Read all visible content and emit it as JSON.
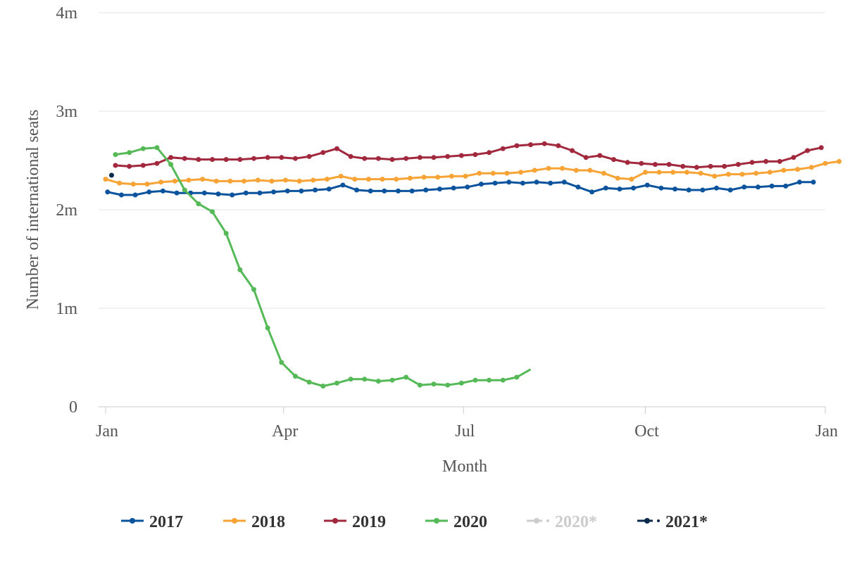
{
  "chart_data": {
    "type": "line",
    "title": "",
    "xlabel": "Month",
    "ylabel": "Number of international seats",
    "xlim": [
      0,
      52
    ],
    "ylim": [
      0,
      4000000
    ],
    "x_ticks": [
      {
        "label": "Jan",
        "x": 0
      },
      {
        "label": "Apr",
        "x": 12.86
      },
      {
        "label": "Jul",
        "x": 25.86
      },
      {
        "label": "Oct",
        "x": 39
      },
      {
        "label": "Jan",
        "x": 52
      }
    ],
    "y_ticks": [
      {
        "label": "0",
        "value": 0
      },
      {
        "label": "1m",
        "value": 1000000
      },
      {
        "label": "2m",
        "value": 2000000
      },
      {
        "label": "3m",
        "value": 3000000
      },
      {
        "label": "4m",
        "value": 4000000
      }
    ],
    "grid": true,
    "legend": "bottom",
    "series": [
      {
        "name": "2017",
        "color": "#0b539d",
        "x_start": 0.14,
        "x_step": 1,
        "values": [
          2.18,
          2.15,
          2.15,
          2.18,
          2.19,
          2.17,
          2.17,
          2.17,
          2.16,
          2.15,
          2.17,
          2.17,
          2.18,
          2.19,
          2.19,
          2.2,
          2.21,
          2.25,
          2.2,
          2.19,
          2.19,
          2.19,
          2.19,
          2.2,
          2.21,
          2.22,
          2.23,
          2.26,
          2.27,
          2.28,
          2.27,
          2.28,
          2.27,
          2.28,
          2.23,
          2.18,
          2.22,
          2.21,
          2.22,
          2.25,
          2.22,
          2.21,
          2.2,
          2.2,
          2.22,
          2.2,
          2.23,
          2.23,
          2.24,
          2.24,
          2.28,
          2.28
        ]
      },
      {
        "name": "2018",
        "color": "#f7a335",
        "x_start": 0,
        "x_step": 1,
        "values": [
          2.31,
          2.27,
          2.26,
          2.26,
          2.28,
          2.29,
          2.3,
          2.31,
          2.29,
          2.29,
          2.29,
          2.3,
          2.29,
          2.3,
          2.29,
          2.3,
          2.31,
          2.34,
          2.31,
          2.31,
          2.31,
          2.31,
          2.32,
          2.33,
          2.33,
          2.34,
          2.34,
          2.37,
          2.37,
          2.37,
          2.38,
          2.4,
          2.42,
          2.42,
          2.4,
          2.4,
          2.37,
          2.32,
          2.31,
          2.38,
          2.38,
          2.38,
          2.38,
          2.37,
          2.34,
          2.36,
          2.36,
          2.37,
          2.38,
          2.4,
          2.41,
          2.43,
          2.47,
          2.49
        ]
      },
      {
        "name": "2019",
        "color": "#a1283d",
        "x_start": 0.71,
        "x_step": 1,
        "values": [
          2.45,
          2.44,
          2.45,
          2.47,
          2.53,
          2.52,
          2.51,
          2.51,
          2.51,
          2.51,
          2.52,
          2.53,
          2.53,
          2.52,
          2.54,
          2.58,
          2.62,
          2.54,
          2.52,
          2.52,
          2.51,
          2.52,
          2.53,
          2.53,
          2.54,
          2.55,
          2.56,
          2.58,
          2.62,
          2.65,
          2.66,
          2.67,
          2.65,
          2.6,
          2.53,
          2.55,
          2.51,
          2.48,
          2.47,
          2.46,
          2.46,
          2.44,
          2.43,
          2.44,
          2.44,
          2.46,
          2.48,
          2.49,
          2.49,
          2.53,
          2.6,
          2.63
        ]
      },
      {
        "name": "2020",
        "color": "#54b956",
        "x_start": 0.71,
        "x_step": 1,
        "values": [
          2.56,
          2.58,
          2.62,
          2.63,
          2.46,
          2.2,
          2.06,
          1.98,
          1.76,
          1.39,
          1.19,
          0.8,
          0.45,
          0.31,
          0.25,
          0.21,
          0.24,
          0.28,
          0.28,
          0.26,
          0.27,
          0.3,
          0.22,
          0.23,
          0.22,
          0.24,
          0.27,
          0.27,
          0.27,
          0.3,
          0.38
        ]
      },
      {
        "name": "2020*",
        "color": "#cccccc",
        "hidden": true,
        "values": []
      },
      {
        "name": "2021*",
        "color": "#0c2b4c",
        "x_start": 0.43,
        "x_step": 1,
        "values": [
          2.35
        ]
      }
    ],
    "value_unit_multiplier": 1000000
  }
}
